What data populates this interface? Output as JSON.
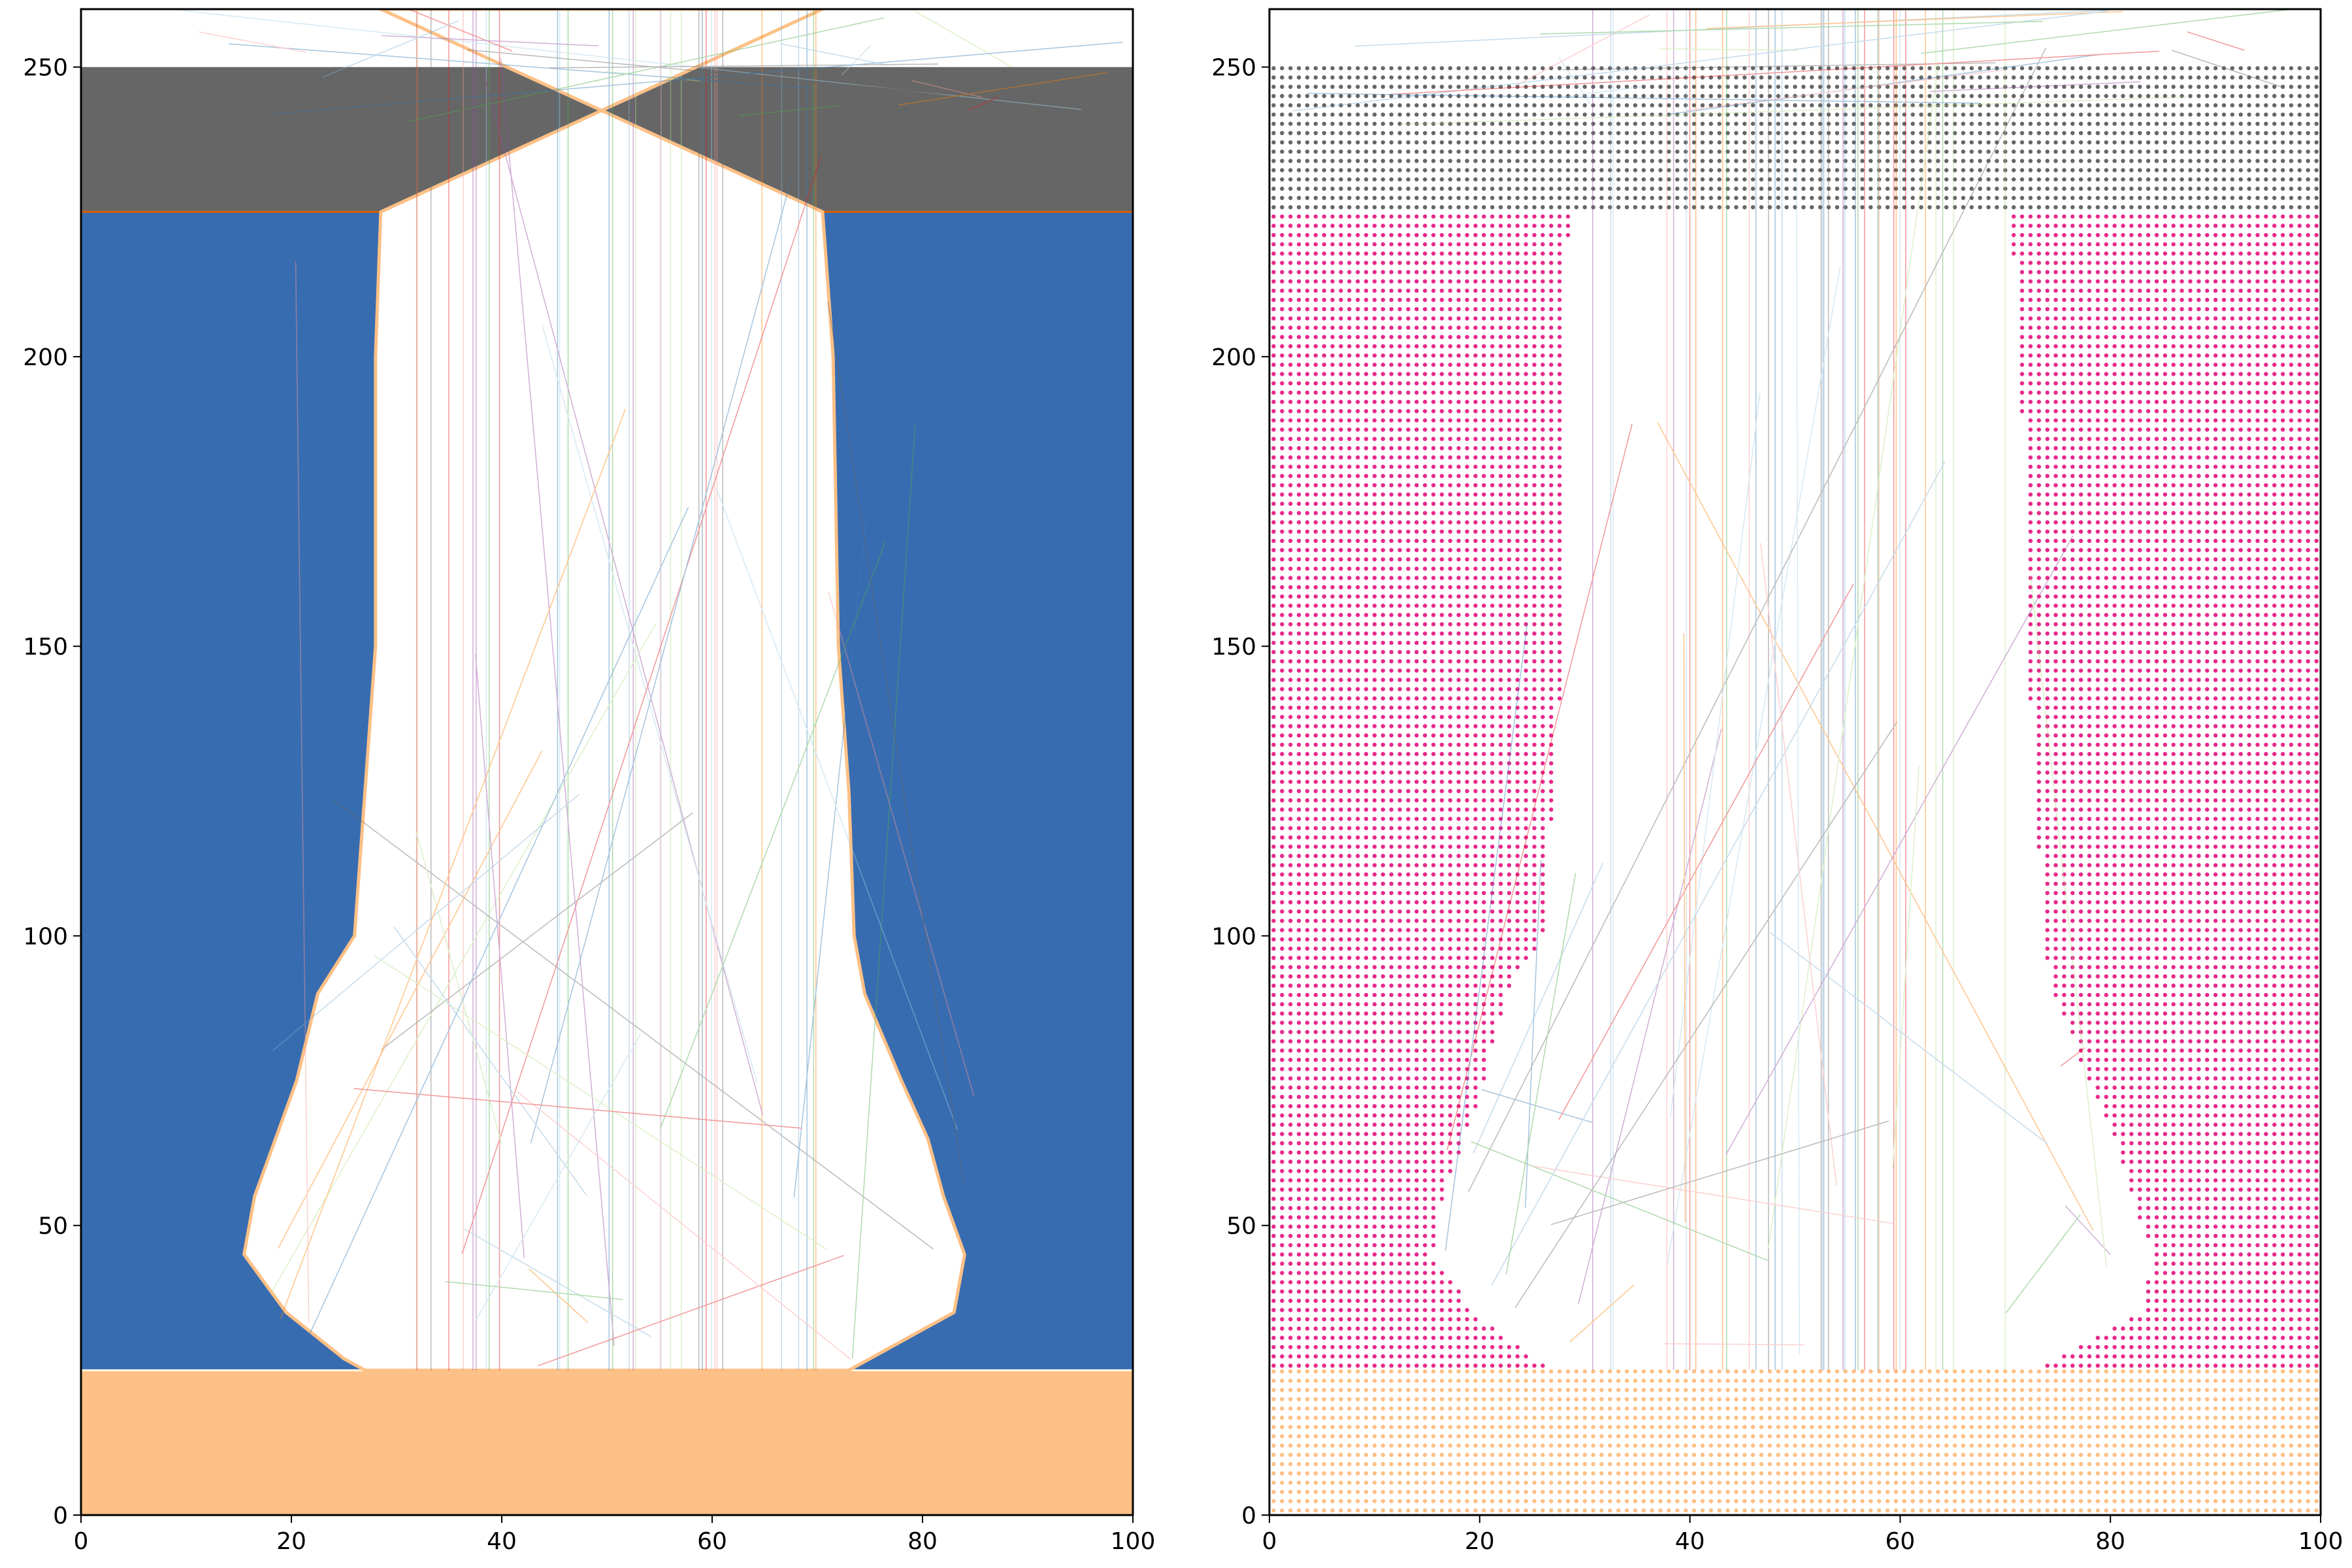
{
  "chart_data": [
    {
      "type": "area",
      "xlim": [
        0,
        100
      ],
      "ylim": [
        0,
        260
      ],
      "xticks": [
        0,
        20,
        40,
        60,
        80,
        100
      ],
      "yticks": [
        0,
        50,
        100,
        150,
        200,
        250
      ],
      "grid": false,
      "layers": [
        {
          "y_from": 225,
          "y_to": 250,
          "color": "#666666"
        },
        {
          "y_from": 25,
          "y_to": 225,
          "color": "#386cb0"
        },
        {
          "y_from": 0,
          "y_to": 25,
          "color": "#fdc086"
        }
      ],
      "channel": [
        [
          225,
          28.5,
          70.5
        ],
        [
          200,
          28.0,
          71.5
        ],
        [
          150,
          28.0,
          72.0
        ],
        [
          125,
          27.0,
          73.0
        ],
        [
          100,
          26.0,
          73.5
        ],
        [
          90,
          22.5,
          74.5
        ],
        [
          75,
          20.5,
          78.0
        ],
        [
          65,
          18.5,
          80.5
        ],
        [
          55,
          16.5,
          82.0
        ],
        [
          45,
          15.5,
          84.0
        ],
        [
          35,
          19.5,
          83.0
        ],
        [
          27,
          25.0,
          75.0
        ],
        [
          25,
          27.0,
          73.0
        ]
      ]
    },
    {
      "type": "scatter",
      "xlim": [
        0,
        100
      ],
      "ylim": [
        0,
        260
      ],
      "xticks": [
        0,
        20,
        40,
        60,
        80,
        100
      ],
      "yticks": [
        0,
        50,
        100,
        150,
        200,
        250
      ],
      "grid": false,
      "point_spacing_x": 0.8,
      "point_spacing_y": 1.6,
      "layers": [
        {
          "y_from": 225,
          "y_to": 250,
          "color": "#666666"
        },
        {
          "y_from": 25,
          "y_to": 225,
          "color": "#e7298a"
        },
        {
          "y_from": 0,
          "y_to": 25,
          "color": "#fdc086"
        }
      ],
      "channel": [
        [
          225,
          28.5,
          70.5
        ],
        [
          200,
          28.0,
          71.5
        ],
        [
          150,
          28.0,
          72.0
        ],
        [
          125,
          27.0,
          73.0
        ],
        [
          100,
          26.0,
          73.5
        ],
        [
          90,
          22.5,
          74.5
        ],
        [
          75,
          20.5,
          78.0
        ],
        [
          65,
          18.5,
          80.5
        ],
        [
          55,
          16.5,
          82.0
        ],
        [
          45,
          15.5,
          84.0
        ],
        [
          35,
          19.5,
          83.0
        ],
        [
          27,
          25.0,
          75.0
        ],
        [
          25,
          27.0,
          73.0
        ]
      ]
    }
  ],
  "colors": {
    "top_layer": "#666666",
    "middle_layer_left": "#386cb0",
    "middle_layer_right": "#e7298a",
    "bottom_layer": "#fdc086",
    "channel": "#ffffff",
    "traces": [
      "#e41a1c",
      "#377eb8",
      "#4daf4a",
      "#984ea3",
      "#ff7f00",
      "#a6cee3",
      "#b2df8a",
      "#fb9a99",
      "#666666",
      "#80b1d3"
    ]
  }
}
